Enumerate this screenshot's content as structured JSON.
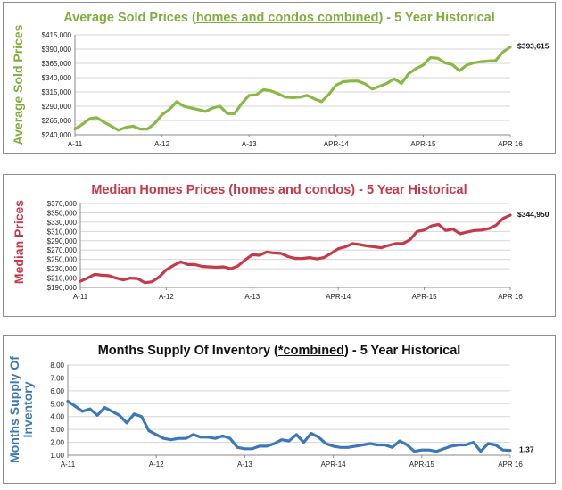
{
  "chart_data": [
    {
      "type": "line",
      "title_parts": [
        "Average Sold Prices (",
        "homes and condos combined",
        ") - 5 Year Historical"
      ],
      "ylabel": "Average Sold Prices",
      "xlabel": "",
      "color": "#8ab847",
      "ylim": [
        240000,
        415000
      ],
      "yticks": [
        240000,
        265000,
        290000,
        315000,
        340000,
        365000,
        390000,
        415000
      ],
      "ytick_labels": [
        "$240,000",
        "$265,000",
        "$290,000",
        "$315,000",
        "$340,000",
        "$365,000",
        "$390,000",
        "$415,000"
      ],
      "xtick_labels": [
        "A-11",
        "A-12",
        "A-13",
        "APR-14",
        "APR-15",
        "APR 16"
      ],
      "xtick_index": [
        0,
        12,
        24,
        36,
        48,
        60
      ],
      "end_label": "$393,615",
      "grid": true,
      "x": [
        "Apr-11",
        "May-11",
        "Jun-11",
        "Jul-11",
        "Aug-11",
        "Sep-11",
        "Oct-11",
        "Nov-11",
        "Dec-11",
        "Jan-12",
        "Feb-12",
        "Mar-12",
        "Apr-12",
        "May-12",
        "Jun-12",
        "Jul-12",
        "Aug-12",
        "Sep-12",
        "Oct-12",
        "Nov-12",
        "Dec-12",
        "Jan-13",
        "Feb-13",
        "Mar-13",
        "Apr-13",
        "May-13",
        "Jun-13",
        "Jul-13",
        "Aug-13",
        "Sep-13",
        "Oct-13",
        "Nov-13",
        "Dec-13",
        "Jan-14",
        "Feb-14",
        "Mar-14",
        "Apr-14",
        "May-14",
        "Jun-14",
        "Jul-14",
        "Aug-14",
        "Sep-14",
        "Oct-14",
        "Nov-14",
        "Dec-14",
        "Jan-15",
        "Feb-15",
        "Mar-15",
        "Apr-15",
        "May-15",
        "Jun-15",
        "Jul-15",
        "Aug-15",
        "Sep-15",
        "Oct-15",
        "Nov-15",
        "Dec-15",
        "Jan-16",
        "Feb-16",
        "Mar-16",
        "Apr-16"
      ],
      "values": [
        250000,
        258000,
        268000,
        270000,
        262000,
        255000,
        248000,
        253000,
        255000,
        250000,
        250000,
        260000,
        275000,
        284000,
        298000,
        290000,
        287000,
        284000,
        281000,
        287000,
        290000,
        277000,
        277000,
        295000,
        309000,
        310000,
        319000,
        317000,
        312000,
        306000,
        305000,
        306000,
        309000,
        303000,
        298000,
        311000,
        327000,
        333000,
        334000,
        334000,
        329000,
        320000,
        325000,
        330000,
        338000,
        330000,
        347000,
        356000,
        362000,
        375000,
        374000,
        366000,
        363000,
        352000,
        362000,
        366000,
        368000,
        369000,
        370000,
        385000,
        393615
      ]
    },
    {
      "type": "line",
      "title_parts": [
        "Median Homes Prices (",
        "homes and condos",
        ") - 5 Year Historical"
      ],
      "ylabel": "Median Prices",
      "xlabel": "",
      "color": "#c43a4b",
      "ylim": [
        190000,
        370000
      ],
      "yticks": [
        190000,
        210000,
        230000,
        250000,
        270000,
        290000,
        310000,
        330000,
        350000,
        370000
      ],
      "ytick_labels": [
        "$190,000",
        "$210,000",
        "$230,000",
        "$250,000",
        "$270,000",
        "$290,000",
        "$310,000",
        "$330,000",
        "$350,000",
        "$370,000"
      ],
      "xtick_labels": [
        "A-11",
        "A-12",
        "A-13",
        "APR-14",
        "APR-15",
        "APR 16"
      ],
      "xtick_index": [
        0,
        12,
        24,
        36,
        48,
        60
      ],
      "end_label": "$344,950",
      "grid": true,
      "x": [
        "Apr-11",
        "May-11",
        "Jun-11",
        "Jul-11",
        "Aug-11",
        "Sep-11",
        "Oct-11",
        "Nov-11",
        "Dec-11",
        "Jan-12",
        "Feb-12",
        "Mar-12",
        "Apr-12",
        "May-12",
        "Jun-12",
        "Jul-12",
        "Aug-12",
        "Sep-12",
        "Oct-12",
        "Nov-12",
        "Dec-12",
        "Jan-13",
        "Feb-13",
        "Mar-13",
        "Apr-13",
        "May-13",
        "Jun-13",
        "Jul-13",
        "Aug-13",
        "Sep-13",
        "Oct-13",
        "Nov-13",
        "Dec-13",
        "Jan-14",
        "Feb-14",
        "Mar-14",
        "Apr-14",
        "May-14",
        "Jun-14",
        "Jul-14",
        "Aug-14",
        "Sep-14",
        "Oct-14",
        "Nov-14",
        "Dec-14",
        "Jan-15",
        "Feb-15",
        "Mar-15",
        "Apr-15",
        "May-15",
        "Jun-15",
        "Jul-15",
        "Aug-15",
        "Sep-15",
        "Oct-15",
        "Nov-15",
        "Dec-15",
        "Jan-16",
        "Feb-16",
        "Mar-16",
        "Apr-16"
      ],
      "values": [
        203000,
        210000,
        218000,
        216000,
        215000,
        210000,
        206000,
        210000,
        209000,
        200000,
        202000,
        212000,
        228000,
        237000,
        245000,
        239000,
        239000,
        235000,
        234000,
        233000,
        234000,
        230000,
        236000,
        249000,
        260000,
        259000,
        266000,
        264000,
        263000,
        256000,
        252000,
        252000,
        254000,
        251000,
        254000,
        263000,
        273000,
        277000,
        284000,
        282000,
        279000,
        277000,
        275000,
        280000,
        284000,
        284000,
        292000,
        310000,
        313000,
        322000,
        325000,
        312000,
        315000,
        305000,
        309000,
        312000,
        313000,
        316000,
        323000,
        338000,
        344950
      ]
    },
    {
      "type": "line",
      "title_parts": [
        "Months Supply Of Inventory (",
        "*combined",
        ") - 5 Year Historical"
      ],
      "ylabel_lines": [
        "Months Supply Of",
        "Inventory"
      ],
      "xlabel": "",
      "color": "#3b78b8",
      "ylim": [
        1.0,
        8.0
      ],
      "yticks": [
        1,
        2,
        3,
        4,
        5,
        6,
        7,
        8
      ],
      "ytick_labels": [
        "1.00",
        "2.00",
        "3.00",
        "4.00",
        "5.00",
        "6.00",
        "7.00",
        "8.00"
      ],
      "xtick_labels": [
        "A-11",
        "A-12",
        "A-13",
        "APR-14",
        "APR-15",
        "APR 16"
      ],
      "xtick_index": [
        0,
        12,
        24,
        36,
        48,
        60
      ],
      "end_label": "1.37",
      "grid": true,
      "x": [
        "Apr-11",
        "May-11",
        "Jun-11",
        "Jul-11",
        "Aug-11",
        "Sep-11",
        "Oct-11",
        "Nov-11",
        "Dec-11",
        "Jan-12",
        "Feb-12",
        "Mar-12",
        "Apr-12",
        "May-12",
        "Jun-12",
        "Jul-12",
        "Aug-12",
        "Sep-12",
        "Oct-12",
        "Nov-12",
        "Dec-12",
        "Jan-13",
        "Feb-13",
        "Mar-13",
        "Apr-13",
        "May-13",
        "Jun-13",
        "Jul-13",
        "Aug-13",
        "Sep-13",
        "Oct-13",
        "Nov-13",
        "Dec-13",
        "Jan-14",
        "Feb-14",
        "Mar-14",
        "Apr-14",
        "May-14",
        "Jun-14",
        "Jul-14",
        "Aug-14",
        "Sep-14",
        "Oct-14",
        "Nov-14",
        "Dec-14",
        "Jan-15",
        "Feb-15",
        "Mar-15",
        "Apr-15",
        "May-15",
        "Jun-15",
        "Jul-15",
        "Aug-15",
        "Sep-15",
        "Oct-15",
        "Nov-15",
        "Dec-15",
        "Jan-16",
        "Feb-16",
        "Mar-16",
        "Apr-16"
      ],
      "values": [
        5.2,
        4.8,
        4.4,
        4.6,
        4.1,
        4.7,
        4.4,
        4.1,
        3.5,
        4.2,
        4.0,
        2.9,
        2.6,
        2.3,
        2.2,
        2.3,
        2.3,
        2.6,
        2.4,
        2.4,
        2.3,
        2.5,
        2.3,
        1.6,
        1.5,
        1.5,
        1.7,
        1.7,
        1.9,
        2.2,
        2.1,
        2.6,
        2.0,
        2.7,
        2.4,
        1.9,
        1.7,
        1.6,
        1.6,
        1.7,
        1.8,
        1.9,
        1.8,
        1.8,
        1.6,
        2.1,
        1.8,
        1.3,
        1.4,
        1.4,
        1.3,
        1.5,
        1.7,
        1.8,
        1.8,
        2.0,
        1.3,
        1.9,
        1.8,
        1.4,
        1.37
      ]
    }
  ]
}
